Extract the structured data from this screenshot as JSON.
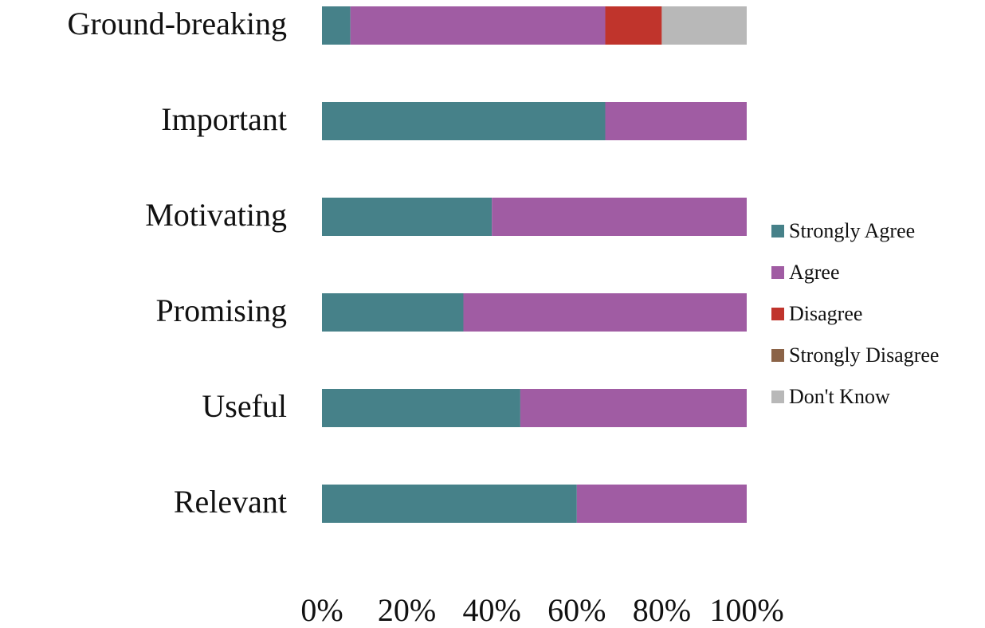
{
  "chart_data": {
    "type": "stacked_barh",
    "categories": [
      "Ground-breaking",
      "Important",
      "Motivating",
      "Promising",
      "Useful",
      "Relevant"
    ],
    "series": [
      {
        "name": "Strongly Agree",
        "color": "#468189",
        "values": [
          6.7,
          66.7,
          40,
          33.3,
          46.7,
          60
        ]
      },
      {
        "name": "Agree",
        "color": "#a05ca3",
        "values": [
          60,
          33.3,
          60,
          66.7,
          53.3,
          40
        ]
      },
      {
        "name": "Disagree",
        "color": "#c0342c",
        "values": [
          13.3,
          0,
          0,
          0,
          0,
          0
        ]
      },
      {
        "name": "Strongly Disagree",
        "color": "#8b6347",
        "values": [
          0,
          0,
          0,
          0,
          0,
          0
        ]
      },
      {
        "name": "Don't Know",
        "color": "#b8b8b8",
        "values": [
          20,
          0,
          0,
          0,
          0,
          0
        ]
      }
    ],
    "xlim": [
      0,
      100
    ],
    "xticks": [
      {
        "value": 0,
        "label": "0%"
      },
      {
        "value": 20,
        "label": "20%"
      },
      {
        "value": 40,
        "label": "40%"
      },
      {
        "value": 60,
        "label": "60%"
      },
      {
        "value": 80,
        "label": "80%"
      },
      {
        "value": 100,
        "label": "100%"
      }
    ],
    "grid": false,
    "legend": "right"
  }
}
